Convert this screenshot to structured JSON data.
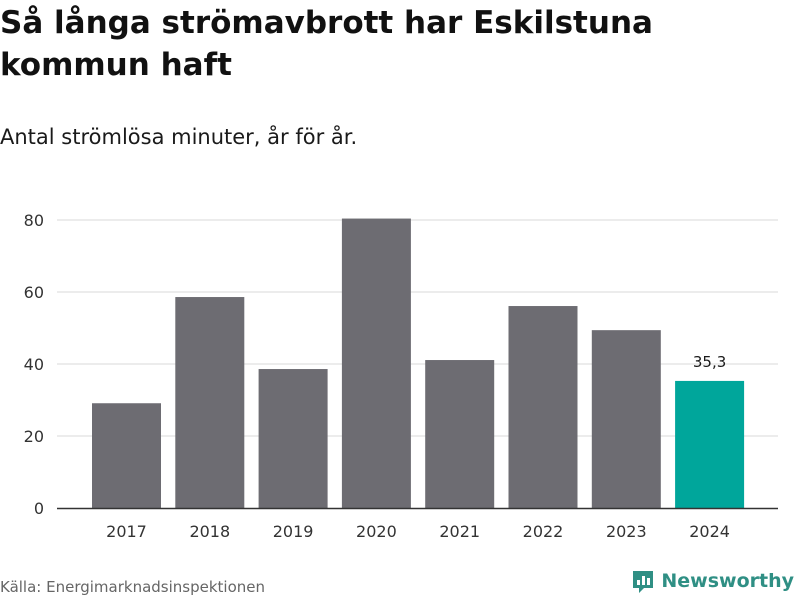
{
  "header": {
    "title": "Så långa strömavbrott har Eskilstuna kommun haft",
    "subtitle": "Antal strömlösa minuter, år för år."
  },
  "footer": {
    "source": "Källa: Energimarknadsinspektionen",
    "brand": "Newsworthy",
    "brand_icon": "bar-chart-logo-icon"
  },
  "colors": {
    "bar": "#6d6c72",
    "highlight": "#00a69b",
    "grid": "#d9d9d9",
    "axis": "#333333",
    "brand": "#2f8f84"
  },
  "chart_data": {
    "type": "bar",
    "categories": [
      "2017",
      "2018",
      "2019",
      "2020",
      "2021",
      "2022",
      "2023",
      "2024"
    ],
    "values": [
      29.1,
      58.6,
      38.6,
      80.4,
      41.1,
      56.1,
      49.4,
      35.3
    ],
    "highlight_index": 7,
    "data_labels": [
      {
        "index": 7,
        "text": "35,3"
      }
    ],
    "yticks": [
      "0",
      "20",
      "40",
      "60",
      "80"
    ],
    "ylim": [
      0,
      80
    ],
    "grid": true,
    "legend": "none"
  }
}
